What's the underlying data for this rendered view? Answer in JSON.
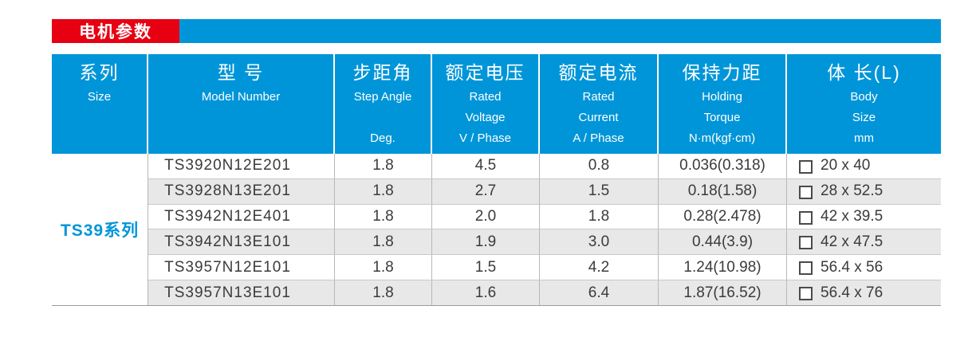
{
  "section": {
    "title": "电机参数"
  },
  "colors": {
    "accent_blue": "#0095D8",
    "accent_red": "#E60012",
    "row_stripe_gray": "#E8E8E8",
    "text_dark": "#3B3B3B"
  },
  "table": {
    "columns": [
      {
        "zh": "系列",
        "en_lines": [
          "Size"
        ]
      },
      {
        "zh": "型  号",
        "en_lines": [
          "Model Number"
        ]
      },
      {
        "zh": "步距角",
        "en_lines": [
          "Step Angle",
          "",
          "Deg."
        ]
      },
      {
        "zh": "额定电压",
        "en_lines": [
          "Rated",
          "Voltage",
          "V / Phase"
        ]
      },
      {
        "zh": "额定电流",
        "en_lines": [
          "Rated",
          "Current",
          "A / Phase"
        ]
      },
      {
        "zh": "保持力距",
        "en_lines": [
          "Holding",
          "Torque",
          "N·m(kgf·cm)"
        ]
      },
      {
        "zh": "体 长(L)",
        "en_lines": [
          "Body",
          "Size",
          "mm"
        ]
      }
    ],
    "series_label": "TS39系列",
    "rows": [
      {
        "model": "TS3920N12E201",
        "step_angle": "1.8",
        "rated_voltage": "4.5",
        "rated_current": "0.8",
        "holding_torque": "0.036(0.318)",
        "body_size": "20 x 40"
      },
      {
        "model": "TS3928N13E201",
        "step_angle": "1.8",
        "rated_voltage": "2.7",
        "rated_current": "1.5",
        "holding_torque": "0.18(1.58)",
        "body_size": "28 x 52.5"
      },
      {
        "model": "TS3942N12E401",
        "step_angle": "1.8",
        "rated_voltage": "2.0",
        "rated_current": "1.8",
        "holding_torque": "0.28(2.478)",
        "body_size": "42 x 39.5"
      },
      {
        "model": "TS3942N13E101",
        "step_angle": "1.8",
        "rated_voltage": "1.9",
        "rated_current": "3.0",
        "holding_torque": "0.44(3.9)",
        "body_size": "42 x 47.5"
      },
      {
        "model": "TS3957N12E101",
        "step_angle": "1.8",
        "rated_voltage": "1.5",
        "rated_current": "4.2",
        "holding_torque": "1.24(10.98)",
        "body_size": "56.4 x 56"
      },
      {
        "model": "TS3957N13E101",
        "step_angle": "1.8",
        "rated_voltage": "1.6",
        "rated_current": "6.4",
        "holding_torque": "1.87(16.52)",
        "body_size": "56.4 x 76"
      }
    ]
  }
}
